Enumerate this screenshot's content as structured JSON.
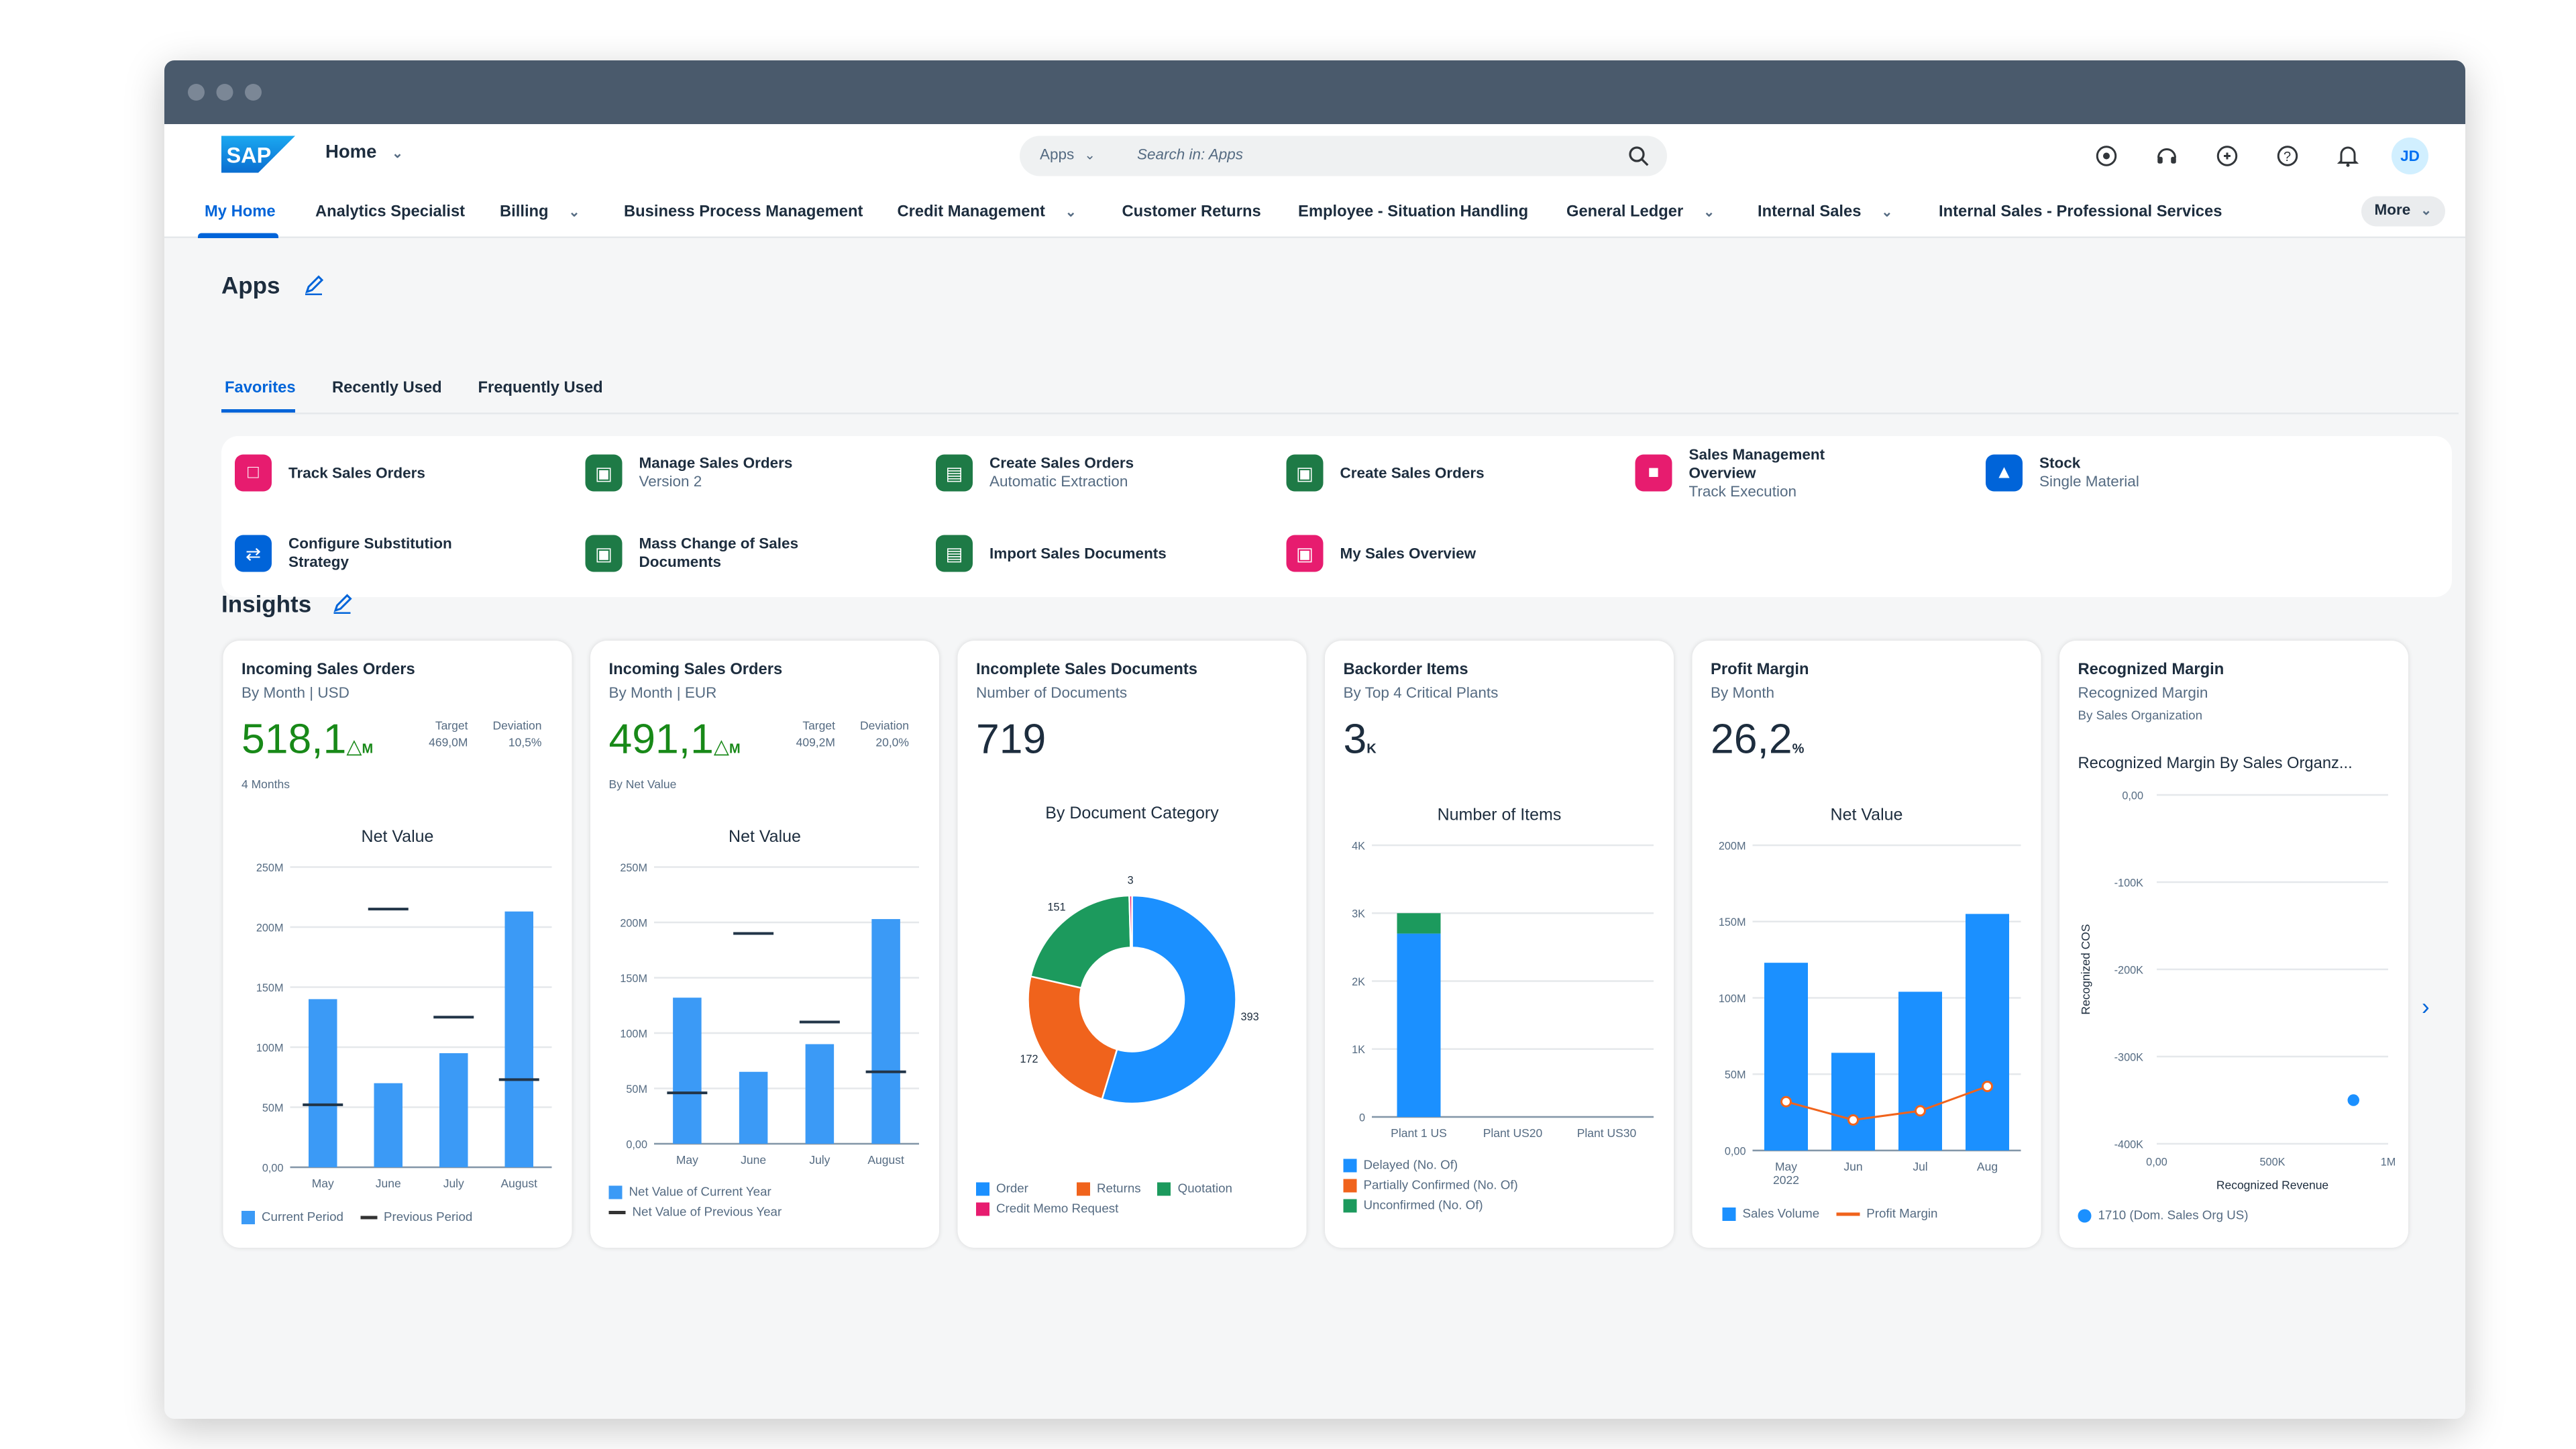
{
  "shell": {
    "home_label": "Home",
    "search_scope": "Apps",
    "search_placeholder": "Search in: Apps",
    "avatar_initials": "JD",
    "icons": [
      "coach-icon",
      "ai-assistant-icon",
      "joule-icon",
      "help-icon",
      "notification-bell-icon"
    ]
  },
  "nav": {
    "tabs": [
      {
        "label": "My Home",
        "active": true
      },
      {
        "label": "Analytics Specialist"
      },
      {
        "label": "Billing",
        "dropdown": true
      },
      {
        "label": "Business Process Management"
      },
      {
        "label": "Credit Management",
        "dropdown": true
      },
      {
        "label": "Customer Returns"
      },
      {
        "label": "Employee - Situation Handling"
      },
      {
        "label": "General Ledger",
        "dropdown": true
      },
      {
        "label": "Internal Sales",
        "dropdown": true
      },
      {
        "label": "Internal Sales - Professional Services"
      }
    ],
    "more_label": "More"
  },
  "apps": {
    "title": "Apps",
    "tabs": [
      "Favorites",
      "Recently Used",
      "Frequently Used"
    ],
    "tiles": [
      {
        "title": "Track Sales Orders",
        "sub": "",
        "color": "#e71c6f"
      },
      {
        "title": "Manage Sales Orders",
        "sub": "Version 2",
        "color": "#1e7a46"
      },
      {
        "title": "Create Sales Orders",
        "sub": "Automatic Extraction",
        "color": "#1e7a46"
      },
      {
        "title": "Create Sales Orders",
        "sub": "",
        "color": "#1e7a46"
      },
      {
        "title": "Sales Management Overview",
        "sub": "Track Execution",
        "color": "#e71c6f"
      },
      {
        "title": "Stock",
        "sub": "Single Material",
        "color": "#0064d9"
      },
      {
        "title": "Configure Substitution Strategy",
        "sub": "",
        "color": "#0064d9"
      },
      {
        "title": "Mass Change of Sales Documents",
        "sub": "",
        "color": "#1e7a46"
      },
      {
        "title": "Import Sales Documents",
        "sub": "",
        "color": "#1e7a46"
      },
      {
        "title": "My Sales Overview",
        "sub": "",
        "color": "#e71c6f"
      }
    ]
  },
  "insights": {
    "title": "Insights",
    "cards": [
      {
        "title": "Incoming Sales Orders",
        "subtitle": "By Month | USD",
        "kpi": "518,1",
        "kpi_unit": "M",
        "target_label": "Target",
        "target": "469,0M",
        "deviation_label": "Deviation",
        "deviation": "10,5%",
        "note": "4 Months",
        "chart_title": "Net Value",
        "legend": [
          "Current Period",
          "Previous Period"
        ]
      },
      {
        "title": "Incoming Sales Orders",
        "subtitle": "By Month | EUR",
        "kpi": "491,1",
        "kpi_unit": "M",
        "target_label": "Target",
        "target": "409,2M",
        "deviation_label": "Deviation",
        "deviation": "20,0%",
        "note": "By Net Value",
        "chart_title": "Net Value",
        "legend": [
          "Net Value of Current Year",
          "Net Value of Previous Year"
        ]
      },
      {
        "title": "Incomplete Sales Documents",
        "subtitle": "Number of Documents",
        "kpi": "719",
        "chart_title": "By Document Category",
        "legend": [
          "Order",
          "Returns",
          "Quotation",
          "Credit Memo Request"
        ]
      },
      {
        "title": "Backorder Items",
        "subtitle": "By Top 4 Critical Plants",
        "kpi": "3",
        "kpi_unit": "K",
        "chart_title": "Number of Items",
        "legend": [
          "Delayed (No. Of)",
          "Partially Confirmed (No. Of)",
          "Unconfirmed (No. Of)"
        ]
      },
      {
        "title": "Profit Margin",
        "subtitle": "By Month",
        "kpi": "26,2",
        "kpi_unit": "%",
        "chart_title": "Net Value",
        "legend": [
          "Sales Volume",
          "Profit Margin"
        ]
      },
      {
        "title": "Recognized Margin",
        "subtitle": "Recognized Margin",
        "subtitle2": "By Sales Organization",
        "chart_title": "Recognized Margin By Sales Organz...",
        "legend": [
          "1710 (Dom. Sales Org US)"
        ]
      }
    ]
  },
  "chart_data": [
    {
      "type": "bar",
      "title": "Net Value",
      "categories": [
        "May",
        "June",
        "July",
        "August"
      ],
      "yticks": [
        "250M",
        "200M",
        "150M",
        "100M",
        "50M",
        "0,00"
      ],
      "ylim": [
        0,
        250
      ],
      "series": [
        {
          "name": "Current Period",
          "values": [
            140,
            70,
            95,
            213
          ],
          "color": "#3b9af6"
        },
        {
          "name": "Previous Period",
          "values": [
            52,
            215,
            125,
            73
          ],
          "marker": "line"
        }
      ]
    },
    {
      "type": "bar",
      "title": "Net Value",
      "categories": [
        "May",
        "June",
        "July",
        "August"
      ],
      "yticks": [
        "250M",
        "200M",
        "150M",
        "100M",
        "50M",
        "0,00"
      ],
      "ylim": [
        0,
        250
      ],
      "series": [
        {
          "name": "Net Value of Current Year",
          "values": [
            132,
            65,
            90,
            203
          ],
          "color": "#3b9af6"
        },
        {
          "name": "Net Value of Previous Year",
          "values": [
            46,
            190,
            110,
            65
          ],
          "marker": "line"
        }
      ]
    },
    {
      "type": "pie",
      "title": "By Document Category",
      "slices": [
        {
          "name": "Order",
          "value": 393,
          "color": "#1b90ff"
        },
        {
          "name": "Returns",
          "value": 172,
          "color": "#f0631c"
        },
        {
          "name": "Quotation",
          "value": 151,
          "color": "#1c9a5d"
        },
        {
          "name": "Credit Memo Request",
          "value": 3,
          "color": "#e71c6f"
        }
      ]
    },
    {
      "type": "bar",
      "stacked": true,
      "title": "Number of Items",
      "categories": [
        "Plant 1 US",
        "Plant US20",
        "Plant US30"
      ],
      "yticks": [
        "4K",
        "3K",
        "2K",
        "1K",
        "0"
      ],
      "ylim": [
        0,
        4000
      ],
      "series": [
        {
          "name": "Delayed (No. Of)",
          "values": [
            2700,
            0,
            0
          ],
          "color": "#1b90ff"
        },
        {
          "name": "Partially Confirmed (No. Of)",
          "values": [
            0,
            0,
            0
          ],
          "color": "#f0631c"
        },
        {
          "name": "Unconfirmed (No. Of)",
          "values": [
            300,
            0,
            0
          ],
          "color": "#1c9a5d"
        }
      ]
    },
    {
      "type": "bar",
      "title": "Net Value",
      "categories": [
        "May 2022",
        "Jun",
        "Jul",
        "Aug"
      ],
      "yticks": [
        "200M",
        "150M",
        "100M",
        "50M",
        "0,00"
      ],
      "ylim": [
        0,
        200
      ],
      "series": [
        {
          "name": "Sales Volume",
          "values": [
            123,
            64,
            104,
            155
          ],
          "color": "#1b90ff"
        },
        {
          "name": "Profit Margin",
          "values": [
            32,
            20,
            26,
            42
          ],
          "color": "#f0631c",
          "marker": "line"
        }
      ]
    },
    {
      "type": "scatter",
      "title": "Recognized Margin By Sales Organz...",
      "xlabel": "Recognized Revenue",
      "ylabel": "Recognized COS",
      "xticks": [
        "0,00",
        "500K",
        "1M"
      ],
      "yticks": [
        "0,00",
        "-100K",
        "-200K",
        "-300K",
        "-400K"
      ],
      "xlim": [
        0,
        1000000
      ],
      "ylim": [
        -400000,
        0
      ],
      "series": [
        {
          "name": "1710 (Dom. Sales Org US)",
          "points": [
            [
              850000,
              -350000
            ]
          ],
          "color": "#1b90ff"
        }
      ]
    }
  ]
}
